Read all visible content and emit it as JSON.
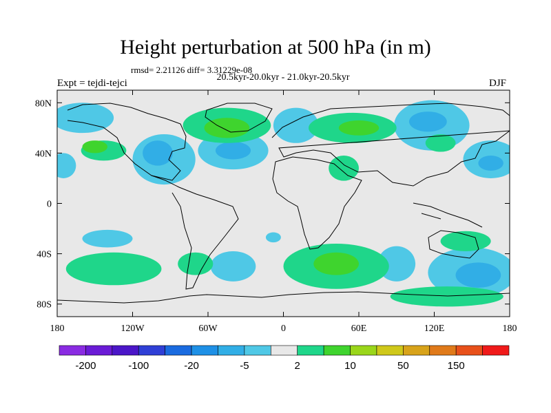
{
  "chart_data": {
    "type": "contour map",
    "title": "Height perturbation at 500 hPa (in m)",
    "rmsd_label": "rmsd= 2.21126 diff= 3.31229e-08",
    "subtitle": "20.5kyr-20.0kyr - 21.0kyr-20.5kyr",
    "experiment_label": "Expt = tejdi-tejci",
    "season_label": "DJF",
    "lat_ticks": [
      "80N",
      "40N",
      "0",
      "40S",
      "80S"
    ],
    "lat_values": [
      80,
      40,
      0,
      -40,
      -80
    ],
    "lon_ticks": [
      "180",
      "120W",
      "60W",
      "0",
      "60E",
      "120E",
      "180"
    ],
    "lon_values": [
      -180,
      -120,
      -60,
      0,
      60,
      120,
      180
    ],
    "lon_range": [
      -180,
      180
    ],
    "lat_range": [
      -90,
      90
    ],
    "colorbar": {
      "colors": [
        "#8a2be2",
        "#6a1bd6",
        "#4b16c8",
        "#2f3fd6",
        "#1a6be0",
        "#1e90e6",
        "#31aee6",
        "#4fc8e6",
        "#e8e8e8",
        "#1fd68a",
        "#3fd42e",
        "#9ad61a",
        "#cfc81a",
        "#d8a31a",
        "#e07a1a",
        "#e8501a",
        "#f01a1a"
      ],
      "tick_labels": [
        "-200",
        "-100",
        "-20",
        "-5",
        "2",
        "10",
        "50",
        "150"
      ],
      "tick_boundaries": [
        1,
        3,
        5,
        7,
        9,
        11,
        13,
        15
      ]
    },
    "positive_regions": [
      {
        "lon": -143,
        "lat": 42,
        "rx": 18,
        "ry": 8,
        "level": 0
      },
      {
        "lon": -150,
        "lat": 45,
        "rx": 10,
        "ry": 5,
        "level": 1
      },
      {
        "lon": -45,
        "lat": 62,
        "rx": 35,
        "ry": 14,
        "level": 0
      },
      {
        "lon": -45,
        "lat": 60,
        "rx": 18,
        "ry": 8,
        "level": 1
      },
      {
        "lon": 55,
        "lat": 60,
        "rx": 35,
        "ry": 12,
        "level": 0
      },
      {
        "lon": 60,
        "lat": 60,
        "rx": 16,
        "ry": 6,
        "level": 1
      },
      {
        "lon": 48,
        "lat": 28,
        "rx": 12,
        "ry": 10,
        "level": 0
      },
      {
        "lon": 125,
        "lat": 48,
        "rx": 12,
        "ry": 7,
        "level": 0
      },
      {
        "lon": -135,
        "lat": -52,
        "rx": 38,
        "ry": 13,
        "level": 0
      },
      {
        "lon": -70,
        "lat": -48,
        "rx": 14,
        "ry": 9,
        "level": 0
      },
      {
        "lon": 42,
        "lat": -50,
        "rx": 42,
        "ry": 18,
        "level": 0
      },
      {
        "lon": 42,
        "lat": -48,
        "rx": 18,
        "ry": 9,
        "level": 1
      },
      {
        "lon": 145,
        "lat": -30,
        "rx": 20,
        "ry": 8,
        "level": 0
      },
      {
        "lon": 130,
        "lat": -74,
        "rx": 45,
        "ry": 8,
        "level": 0
      }
    ],
    "negative_regions": [
      {
        "lon": -160,
        "lat": 68,
        "rx": 25,
        "ry": 12,
        "level": 0
      },
      {
        "lon": -175,
        "lat": 30,
        "rx": 10,
        "ry": 10,
        "level": 0
      },
      {
        "lon": -95,
        "lat": 35,
        "rx": 25,
        "ry": 20,
        "level": 0
      },
      {
        "lon": -100,
        "lat": 40,
        "rx": 12,
        "ry": 10,
        "level": 1
      },
      {
        "lon": -40,
        "lat": 42,
        "rx": 28,
        "ry": 15,
        "level": 0
      },
      {
        "lon": -40,
        "lat": 42,
        "rx": 14,
        "ry": 7,
        "level": 1
      },
      {
        "lon": 10,
        "lat": 62,
        "rx": 18,
        "ry": 14,
        "level": 0
      },
      {
        "lon": 118,
        "lat": 62,
        "rx": 30,
        "ry": 20,
        "level": 0
      },
      {
        "lon": 115,
        "lat": 65,
        "rx": 15,
        "ry": 8,
        "level": 1
      },
      {
        "lon": 165,
        "lat": 35,
        "rx": 22,
        "ry": 15,
        "level": 0
      },
      {
        "lon": 165,
        "lat": 32,
        "rx": 10,
        "ry": 6,
        "level": 1
      },
      {
        "lon": -140,
        "lat": -28,
        "rx": 20,
        "ry": 7,
        "level": 0
      },
      {
        "lon": -40,
        "lat": -50,
        "rx": 18,
        "ry": 12,
        "level": 0
      },
      {
        "lon": 90,
        "lat": -48,
        "rx": 15,
        "ry": 14,
        "level": 0
      },
      {
        "lon": 150,
        "lat": -55,
        "rx": 35,
        "ry": 20,
        "level": 0
      },
      {
        "lon": 155,
        "lat": -57,
        "rx": 18,
        "ry": 10,
        "level": 1
      },
      {
        "lon": -8,
        "lat": -27,
        "rx": 6,
        "ry": 4,
        "level": 0
      }
    ]
  }
}
